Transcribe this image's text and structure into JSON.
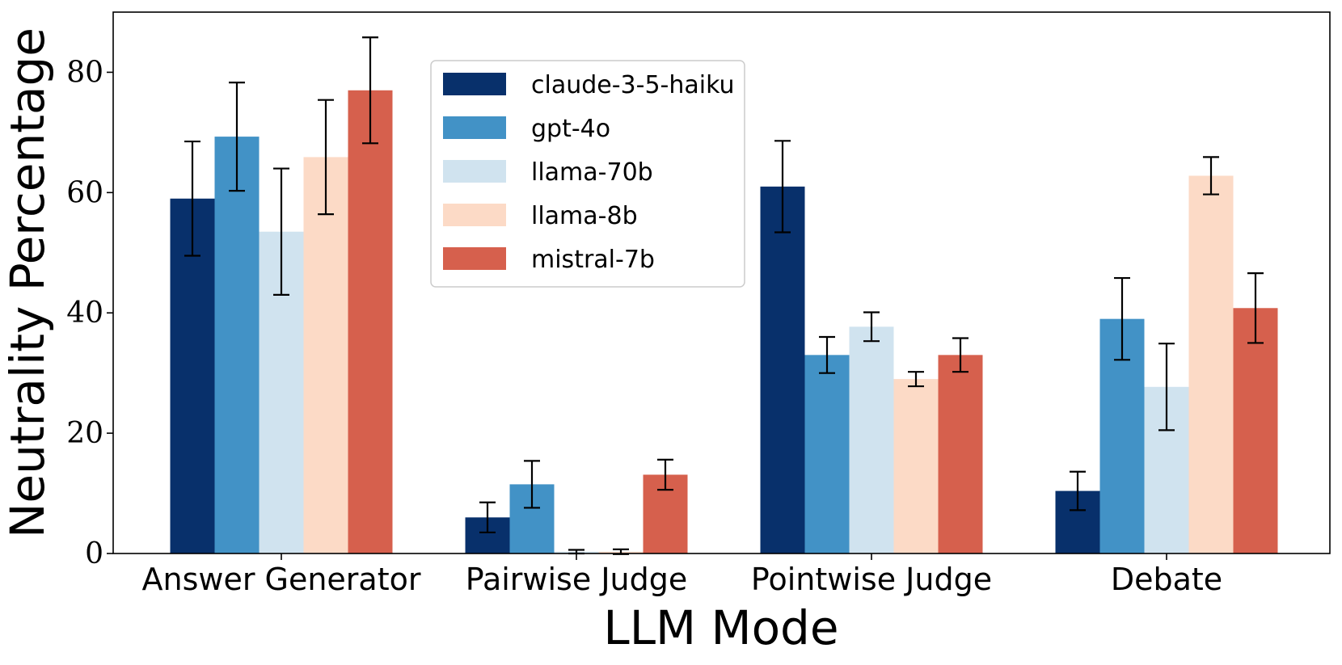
{
  "chart_data": {
    "type": "bar",
    "title": "",
    "xlabel": "LLM Mode",
    "ylabel": "Neutrality Percentage",
    "ylim": [
      0,
      90
    ],
    "yticks": [
      0,
      20,
      40,
      60,
      80
    ],
    "grid": false,
    "legend_position": "top-center",
    "categories": [
      "Answer Generator",
      "Pairwise Judge",
      "Pointwise Judge",
      "Debate"
    ],
    "series": [
      {
        "name": "claude-3-5-haiku",
        "color": "#08306b",
        "values": [
          59.0,
          6.0,
          61.0,
          10.4
        ],
        "errors": [
          9.5,
          2.5,
          7.6,
          3.2
        ]
      },
      {
        "name": "gpt-4o",
        "color": "#4292c6",
        "values": [
          69.3,
          11.5,
          33.0,
          39.0
        ],
        "errors": [
          9.0,
          3.9,
          3.0,
          6.8
        ]
      },
      {
        "name": "llama-70b",
        "color": "#d0e3ef",
        "values": [
          53.5,
          0.3,
          37.7,
          27.7
        ],
        "errors": [
          10.5,
          0.3,
          2.4,
          7.2
        ]
      },
      {
        "name": "llama-8b",
        "color": "#fcdac6",
        "values": [
          65.9,
          0.3,
          29.0,
          62.8
        ],
        "errors": [
          9.5,
          0.4,
          1.2,
          3.1
        ]
      },
      {
        "name": "mistral-7b",
        "color": "#d6604d",
        "values": [
          77.0,
          13.1,
          33.0,
          40.8
        ],
        "errors": [
          8.8,
          2.5,
          2.8,
          5.8
        ]
      }
    ]
  }
}
